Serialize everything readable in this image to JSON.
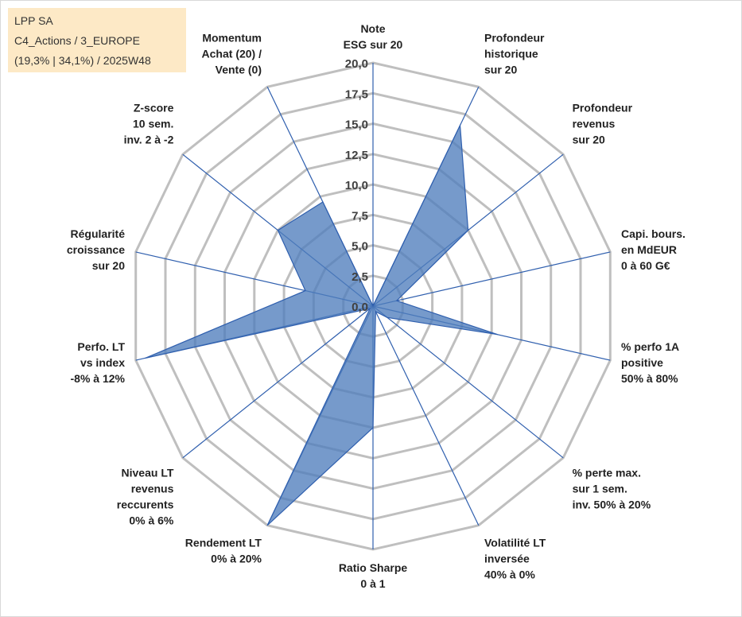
{
  "chart_data": {
    "type": "radar",
    "title": "",
    "info": {
      "line1": "LPP SA",
      "line2": "C4_Actions / 3_EUROPE",
      "line3": "(19,3% | 34,1%) / 2025W48"
    },
    "rmin": 0,
    "rmax": 20,
    "ticks": [
      "0,0",
      "2,5",
      "5,0",
      "7,5",
      "10,0",
      "12,5",
      "15,0",
      "17,5",
      "20,0"
    ],
    "categories": [
      "Note|ESG sur 20",
      "Profondeur|historique|sur 20",
      "Profondeur|revenus|sur 20",
      "Capi. bours.|en MdEUR|0 à 60 G€",
      "% perfo 1A|positive|50% à 80%",
      "% perte max.|sur 1 sem.|inv. 50% à 20%",
      "Volatilité LT|inversée|40% à 0%",
      "Ratio Sharpe|0 à 1",
      "Rendement LT|0% à 20%",
      "Niveau LT|revenus|reccurents|0% à 6%",
      "Perfo. LT|vs index|-8% à 12%",
      "Régularité|croissance|sur 20",
      "Z-score|10 sem.|inv. 2 à -2",
      "Momentum|Achat (20) /|Vente (0)"
    ],
    "series": [
      {
        "name": "LPP SA",
        "color": "#4f7dbd",
        "values": [
          0,
          16.5,
          10.0,
          2.0,
          10.5,
          1.5,
          0.5,
          10.0,
          20.0,
          0.3,
          19.2,
          5.7,
          10.0,
          9.5
        ]
      }
    ],
    "grid": true
  }
}
